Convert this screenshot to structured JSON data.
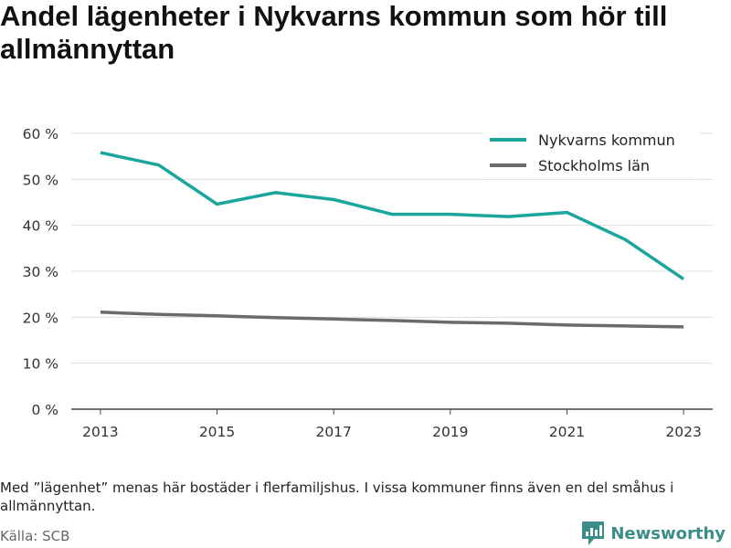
{
  "title": "Andel lägenheter i Nykvarns kommun som hör till allmännyttan",
  "note": "Med ”lägenhet” menas här bostäder i flerfamiljshus. I vissa kommuner finns även en del småhus i allmännyttan.",
  "source": "Källa: SCB",
  "brand": "Newsworthy",
  "colors": {
    "nykvarn": "#1aa59d",
    "stockholm": "#6b6b6b",
    "grid": "#dddddd",
    "brand": "#3a8d89"
  },
  "chart_data": {
    "type": "line",
    "x": [
      2013,
      2014,
      2015,
      2016,
      2017,
      2018,
      2019,
      2020,
      2021,
      2022,
      2023
    ],
    "x_tick_labels": [
      "2013",
      "2015",
      "2017",
      "2019",
      "2021",
      "2023"
    ],
    "y_tick_labels": [
      "0 %",
      "10 %",
      "20 %",
      "30 %",
      "40 %",
      "50 %",
      "60 %"
    ],
    "y_ticks": [
      0,
      10,
      20,
      30,
      40,
      50,
      60
    ],
    "ylim": [
      0,
      60
    ],
    "xlim": [
      2012.5,
      2023.5
    ],
    "grid": true,
    "legend_position": "top-right",
    "series": [
      {
        "name": "Nykvarns kommun",
        "values": [
          55.8,
          53.1,
          44.6,
          47.1,
          45.6,
          42.4,
          42.4,
          41.9,
          42.8,
          36.9,
          28.3
        ]
      },
      {
        "name": "Stockholms län",
        "values": [
          21.1,
          20.6,
          20.3,
          19.9,
          19.6,
          19.3,
          18.9,
          18.7,
          18.3,
          18.1,
          17.9
        ]
      }
    ]
  }
}
